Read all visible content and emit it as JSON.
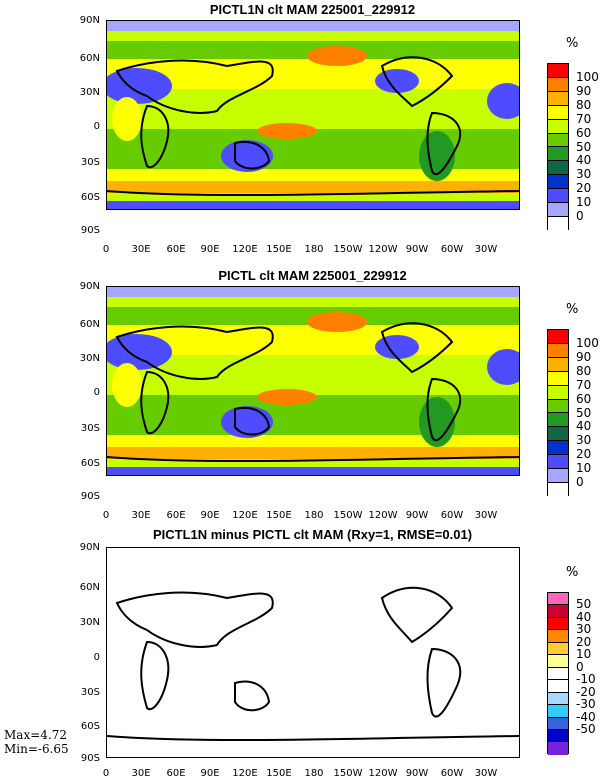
{
  "panels": [
    {
      "title": "PICTL1N clt MAM 225001_229912",
      "unit": "%"
    },
    {
      "title": "PICTL clt MAM 225001_229912",
      "unit": "%"
    },
    {
      "title": "PICTL1N minus PICTL clt MAM (Rxy=1, RMSE=0.01)",
      "unit": "%"
    }
  ],
  "lat_labels": [
    "90N",
    "60N",
    "30N",
    "0",
    "30S",
    "60S",
    "90S"
  ],
  "lon_labels": [
    "0",
    "30E",
    "60E",
    "90E",
    "120E",
    "150E",
    "180",
    "150W",
    "120W",
    "90W",
    "60W",
    "30W"
  ],
  "colorbar_clt": {
    "labels": [
      "100",
      "90",
      "80",
      "70",
      "60",
      "50",
      "40",
      "30",
      "20",
      "10",
      "0"
    ],
    "colors": [
      "#ff0000",
      "#ff7f00",
      "#ffb000",
      "#ffff00",
      "#c8ff00",
      "#66cc00",
      "#229922",
      "#116644",
      "#0033cc",
      "#4d4dff",
      "#a6a6ff",
      "#ffffff"
    ]
  },
  "colorbar_diff": {
    "labels": [
      "50",
      "40",
      "30",
      "20",
      "10",
      "0",
      "-10",
      "-20",
      "-30",
      "-40",
      "-50"
    ],
    "colors": [
      "#ff66bb",
      "#cc0033",
      "#ff0000",
      "#ff8800",
      "#ffcc33",
      "#ffff99",
      "#ffffff",
      "#ffffff",
      "#a6d9ff",
      "#33ccff",
      "#3366dd",
      "#0000cc",
      "#7722dd"
    ]
  },
  "stats": {
    "max": "Max=4.72",
    "min": "Min=-6.65"
  }
}
